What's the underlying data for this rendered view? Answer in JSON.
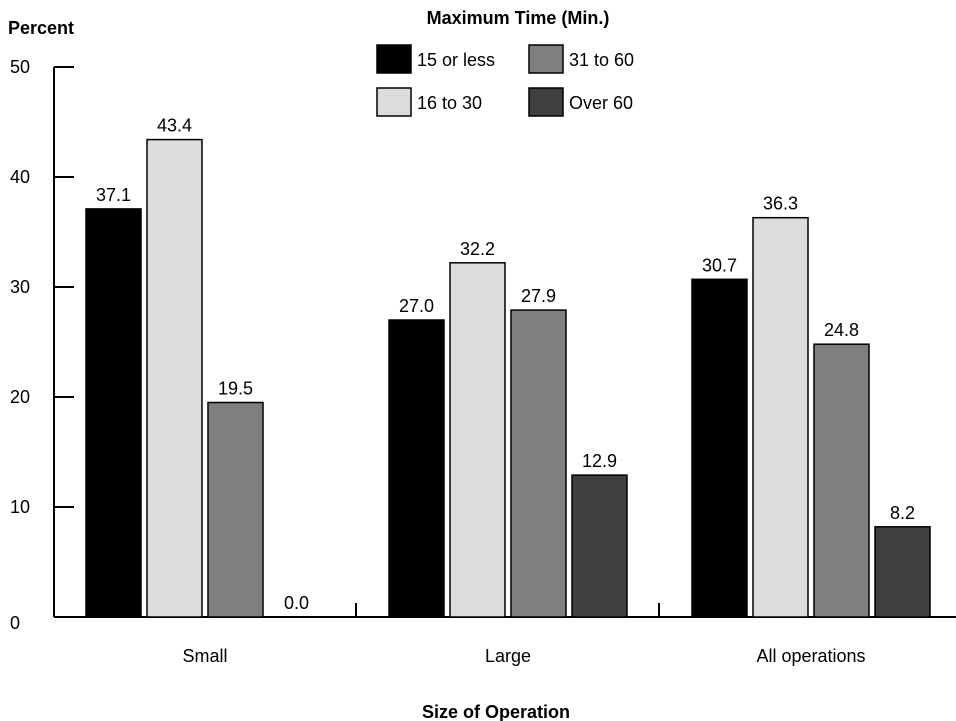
{
  "chart_data": {
    "type": "bar",
    "ylabel": "Percent",
    "xlabel": "Size of Operation",
    "legend_title": "Maximum Time (Min.)",
    "legend_position": "top-center",
    "ylim": [
      0,
      50
    ],
    "yticks": [
      0,
      10,
      20,
      30,
      40,
      50
    ],
    "ytick_labels": [
      "0",
      "10",
      "20",
      "30",
      "40",
      "50"
    ],
    "grid": false,
    "categories": [
      "Small",
      "Large",
      "All operations"
    ],
    "series": [
      {
        "name": "15 or less",
        "color": "#000000",
        "values": [
          37.1,
          27.0,
          30.7
        ],
        "labels": [
          "37.1",
          "27.0",
          "30.7"
        ]
      },
      {
        "name": "16 to 30",
        "color": "#dcdcdc",
        "values": [
          43.4,
          32.2,
          36.3
        ],
        "labels": [
          "43.4",
          "32.2",
          "36.3"
        ]
      },
      {
        "name": "31 to 60",
        "color": "#7f7f7f",
        "values": [
          19.5,
          27.9,
          24.8
        ],
        "labels": [
          "19.5",
          "27.9",
          "24.8"
        ]
      },
      {
        "name": "Over 60",
        "color": "#3f3f3f",
        "values": [
          0.0,
          12.9,
          8.2
        ],
        "labels": [
          "0.0",
          "12.9",
          "8.2"
        ]
      }
    ]
  }
}
